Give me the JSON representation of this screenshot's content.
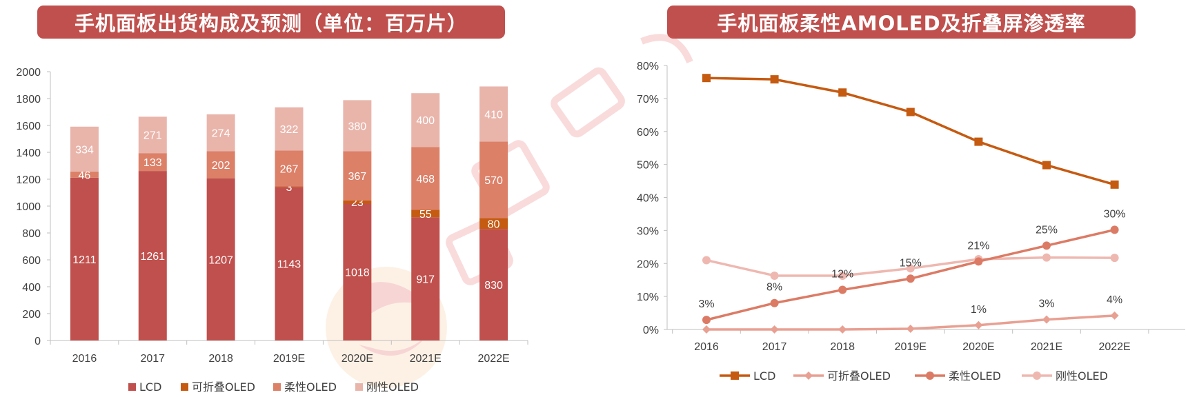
{
  "chart_data": [
    {
      "type": "bar",
      "stacked": true,
      "title": "手机面板出货构成及预测（单位：百万片）",
      "categories": [
        "2016",
        "2017",
        "2018",
        "2019E",
        "2020E",
        "2021E",
        "2022E"
      ],
      "series": [
        {
          "name": "LCD",
          "color": "#c0504d",
          "values": [
            1211,
            1261,
            1207,
            1143,
            1018,
            917,
            830
          ]
        },
        {
          "name": "可折叠OLED",
          "color": "#c55a11",
          "values": [
            null,
            null,
            null,
            3,
            23,
            55,
            80
          ]
        },
        {
          "name": "柔性OLED",
          "color": "#dc8068",
          "values": [
            46,
            133,
            202,
            267,
            367,
            468,
            570
          ]
        },
        {
          "name": "刚性OLED",
          "color": "#e9b5ab",
          "values": [
            334,
            271,
            274,
            322,
            380,
            400,
            410
          ]
        }
      ],
      "ylim": [
        0,
        2000
      ],
      "yticks": [
        "0",
        "200",
        "400",
        "600",
        "800",
        "1000",
        "1200",
        "1400",
        "1600",
        "1800",
        "2000"
      ],
      "legend_position": "bottom"
    },
    {
      "type": "line",
      "title": "手机面板柔性AMOLED及折叠屏渗透率",
      "categories": [
        "2016",
        "2017",
        "2018",
        "2019E",
        "2020E",
        "2021E",
        "2022E"
      ],
      "series": [
        {
          "name": "LCD",
          "color": "#c55a11",
          "marker": "square",
          "values": [
            0.762,
            0.758,
            0.718,
            0.659,
            0.569,
            0.498,
            0.439
          ]
        },
        {
          "name": "可折叠OLED",
          "color": "#e8a092",
          "marker": "diamond",
          "values": [
            0,
            0,
            0,
            0.002,
            0.013,
            0.03,
            0.042
          ],
          "labels": [
            "",
            "",
            "",
            "",
            "1%",
            "3%",
            "4%"
          ]
        },
        {
          "name": "柔性OLED",
          "color": "#dc7b65",
          "marker": "circle",
          "values": [
            0.029,
            0.08,
            0.12,
            0.154,
            0.206,
            0.254,
            0.302
          ],
          "labels": [
            "3%",
            "8%",
            "12%",
            "15%",
            "21%",
            "25%",
            "30%"
          ]
        },
        {
          "name": "刚性OLED",
          "color": "#eeb8b0",
          "marker": "circle",
          "values": [
            0.21,
            0.163,
            0.163,
            0.185,
            0.213,
            0.218,
            0.217
          ]
        }
      ],
      "ylim": [
        0,
        0.8
      ],
      "yticks": [
        "0%",
        "10%",
        "20%",
        "30%",
        "40%",
        "50%",
        "60%",
        "70%",
        "80%"
      ],
      "legend_position": "bottom"
    }
  ]
}
